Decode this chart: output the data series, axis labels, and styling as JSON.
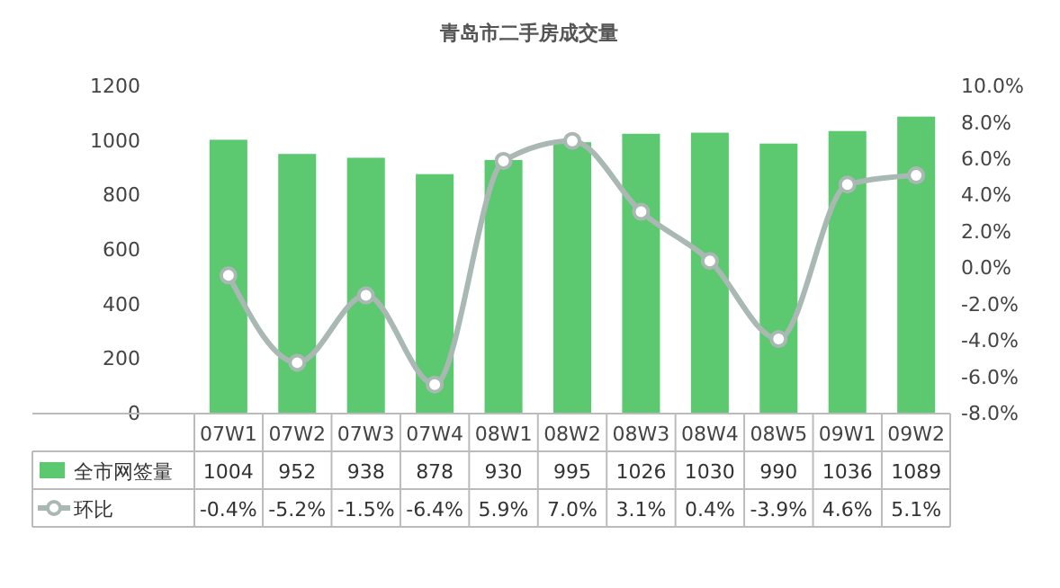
{
  "chart_data": {
    "type": "bar",
    "title": "青岛市二手房成交量",
    "categories": [
      "07W1",
      "07W2",
      "07W3",
      "07W4",
      "08W1",
      "08W2",
      "08W3",
      "08W4",
      "08W5",
      "09W1",
      "09W2"
    ],
    "series": [
      {
        "name": "全市网签量",
        "color": "#5cc870",
        "values": [
          1004,
          952,
          938,
          878,
          930,
          995,
          1026,
          1030,
          990,
          1036,
          1089
        ]
      },
      {
        "name": "环比",
        "type": "line",
        "axis": "y2",
        "color": "#a9b8b2",
        "marker": "circle",
        "values": [
          -0.4,
          -5.2,
          -1.5,
          -6.4,
          5.9,
          7.0,
          3.1,
          0.4,
          -3.9,
          4.6,
          5.1
        ],
        "value_labels": [
          "-0.4%",
          "-5.2%",
          "-1.5%",
          "-6.4%",
          "5.9%",
          "7.0%",
          "3.1%",
          "0.4%",
          "-3.9%",
          "4.6%",
          "5.1%"
        ]
      }
    ],
    "ylim": [
      0,
      1200
    ],
    "yticks": [
      0,
      200,
      400,
      600,
      800,
      1000,
      1200
    ],
    "y2lim": [
      -8,
      10
    ],
    "y2ticks": [
      {
        "value": -8,
        "label": "-8.0%"
      },
      {
        "value": -6,
        "label": "-6.0%"
      },
      {
        "value": -4,
        "label": "-4.0%"
      },
      {
        "value": -2,
        "label": "-2.0%"
      },
      {
        "value": 0,
        "label": "0.0%"
      },
      {
        "value": 2,
        "label": "2.0%"
      },
      {
        "value": 4,
        "label": "4.0%"
      },
      {
        "value": 6,
        "label": "6.0%"
      },
      {
        "value": 8,
        "label": "8.0%"
      },
      {
        "value": 10,
        "label": "10.0%"
      }
    ],
    "data_labels": true,
    "legend": "bottom",
    "grid": false
  }
}
